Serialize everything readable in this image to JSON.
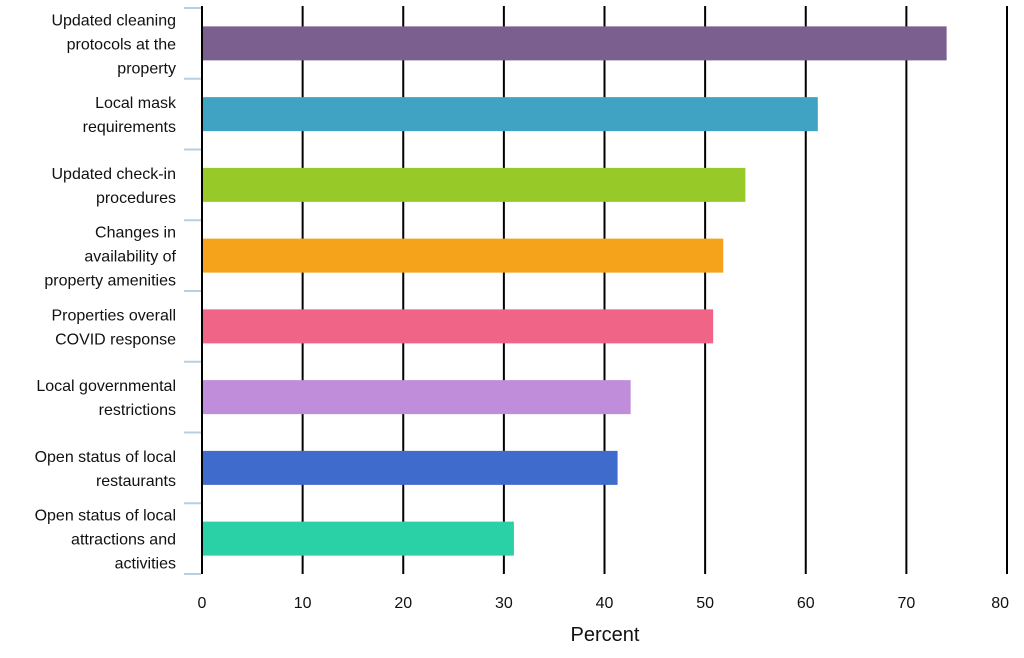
{
  "chart_data": {
    "type": "bar",
    "orientation": "horizontal",
    "title": "",
    "xlabel": "Percent",
    "ylabel": "",
    "xlim": [
      0,
      80
    ],
    "x_ticks": [
      0,
      10,
      20,
      30,
      40,
      50,
      60,
      70,
      80
    ],
    "grid": "vertical",
    "categories": [
      "Updated cleaning protocols at the property",
      "Local mask requirements",
      "Updated check-in procedures",
      "Changes in availability of property amenities",
      "Properties overall COVID response",
      "Local governmental restrictions",
      "Open status of local restaurants",
      "Open status of local attractions and activities"
    ],
    "category_lines": [
      [
        "Updated cleaning",
        "protocols at the",
        "property"
      ],
      [
        "Local mask",
        "requirements"
      ],
      [
        "Updated check-in",
        "procedures"
      ],
      [
        "Changes in",
        "availability of",
        "property amenities"
      ],
      [
        "Properties overall",
        "COVID response"
      ],
      [
        "Local governmental",
        "restrictions"
      ],
      [
        "Open status of local",
        "restaurants"
      ],
      [
        "Open status of local",
        "attractions and",
        "activities"
      ]
    ],
    "values": [
      74,
      61.2,
      54,
      51.8,
      50.8,
      42.6,
      41.3,
      31
    ],
    "colors": [
      "#7b5f8f",
      "#40a3c4",
      "#97c928",
      "#f4a31b",
      "#f06488",
      "#c08ddb",
      "#3f6bcc",
      "#2bd1a6"
    ]
  }
}
